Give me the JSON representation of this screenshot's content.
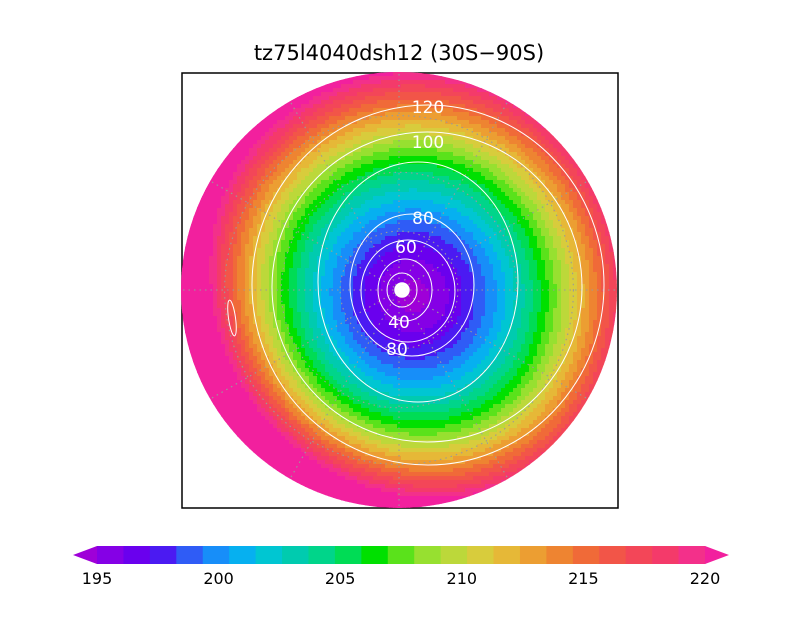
{
  "chart_data": {
    "type": "heatmap",
    "title": "tz75l4040dsh12 (30S−90S)",
    "projection": "south polar stereographic",
    "extent": "30S-90S",
    "grid": true,
    "colorbar": {
      "placement": "bottom",
      "min": 195,
      "max": 220,
      "step": 1,
      "extend": "both",
      "tick_labels": [
        "195",
        "200",
        "205",
        "210",
        "215",
        "220"
      ],
      "colors": [
        "#9f00d8",
        "#8500e6",
        "#6a00ee",
        "#4b1af2",
        "#2f5cf6",
        "#178ef9",
        "#06b0f0",
        "#00c6d2",
        "#00cbaf",
        "#00d58a",
        "#00dc55",
        "#00e000",
        "#5ae21b",
        "#97e030",
        "#bcd83a",
        "#d8cc3c",
        "#e6b837",
        "#ec9e32",
        "#ee8431",
        "#f06a38",
        "#f25548",
        "#f34658",
        "#f43a6a",
        "#f3308a",
        "#f2209e"
      ]
    },
    "shaded_field": {
      "description_units": "K",
      "range": [
        195,
        220
      ],
      "minimum_region": "near pole, slightly offset toward the right",
      "maximum_region": "lower-left edge of the disc (30S)"
    },
    "contours": {
      "color": "#ffffff",
      "labels": [
        "120",
        "100",
        "80",
        "60",
        "40",
        "80"
      ],
      "levels": [
        20,
        40,
        60,
        80,
        100,
        120
      ]
    }
  }
}
